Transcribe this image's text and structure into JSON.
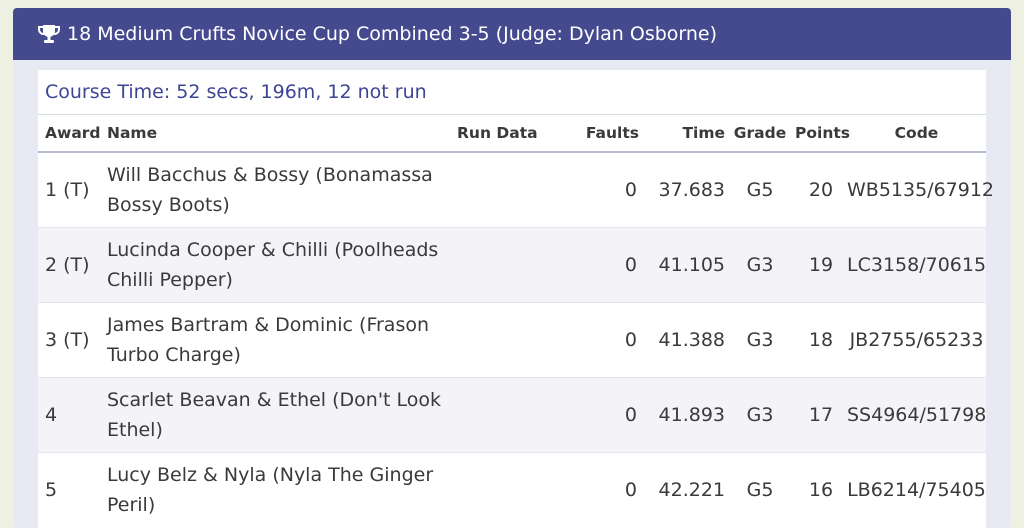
{
  "header": {
    "icon": "trophy-icon",
    "title": "18 Medium Crufts Novice Cup Combined 3-5 (Judge: Dylan Osborne)"
  },
  "course": {
    "text": "Course Time: 52 secs, 196m, 12 not run"
  },
  "columns": {
    "award": "Award",
    "name": "Name",
    "run_data": "Run Data",
    "faults": "Faults",
    "time": "Time",
    "grade": "Grade",
    "points": "Points",
    "code": "Code"
  },
  "rows": [
    {
      "award": "1 (T)",
      "name_line1": "Will Bacchus & Bossy (Bonamassa",
      "name_line2": "Bossy Boots)",
      "run_data": "",
      "faults": "0",
      "time": "37.683",
      "grade": "G5",
      "points": "20",
      "code": "WB5135/67912"
    },
    {
      "award": "2 (T)",
      "name_line1": "Lucinda Cooper & Chilli (Poolheads",
      "name_line2": "Chilli Pepper)",
      "run_data": "",
      "faults": "0",
      "time": "41.105",
      "grade": "G3",
      "points": "19",
      "code": "LC3158/70615"
    },
    {
      "award": "3 (T)",
      "name_line1": "James Bartram & Dominic (Frason",
      "name_line2": "Turbo Charge)",
      "run_data": "",
      "faults": "0",
      "time": "41.388",
      "grade": "G3",
      "points": "18",
      "code": "JB2755/65233"
    },
    {
      "award": "4",
      "name_line1": "Scarlet Beavan & Ethel (Don't Look",
      "name_line2": "Ethel)",
      "run_data": "",
      "faults": "0",
      "time": "41.893",
      "grade": "G3",
      "points": "17",
      "code": "SS4964/51798"
    },
    {
      "award": "5",
      "name_line1": "Lucy Belz & Nyla (Nyla The Ginger",
      "name_line2": "Peril)",
      "run_data": "",
      "faults": "0",
      "time": "42.221",
      "grade": "G5",
      "points": "16",
      "code": "LB6214/75405"
    }
  ]
}
